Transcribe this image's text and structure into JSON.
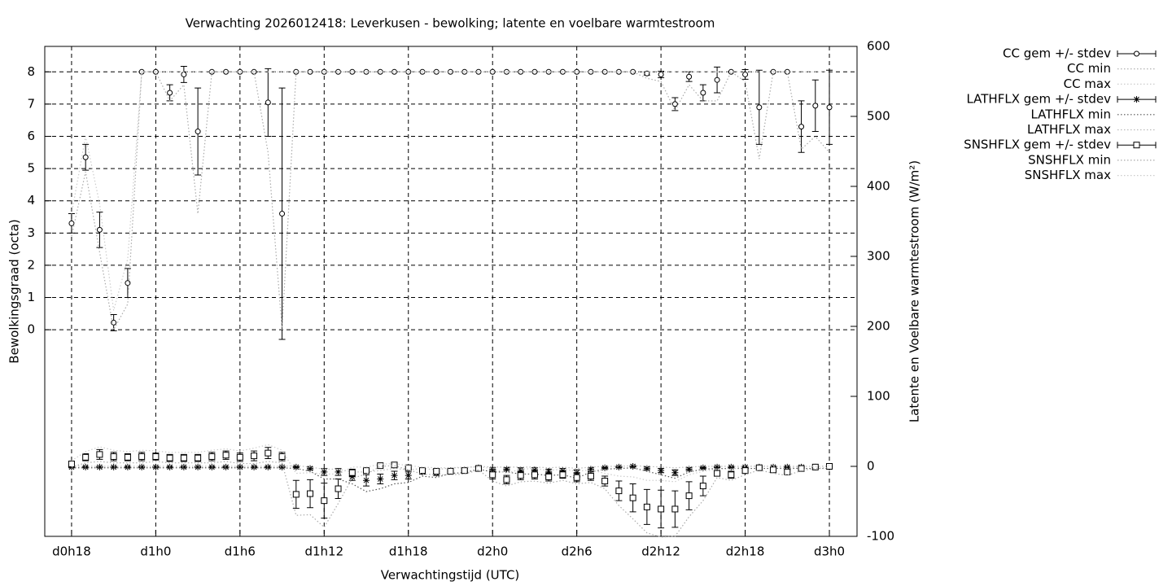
{
  "chart_data": {
    "type": "errorbar-line",
    "title": "Verwachting 2026012418: Leverkusen - bewolking; latente en voelbare warmtestroom",
    "x_label": "Verwachtingstijd (UTC)",
    "y_label": "Bewolkingsgraad (octa)",
    "y2_label": "Latente en Voelbare warmtestroom (W/m²)",
    "x": [
      18,
      19,
      20,
      21,
      22,
      23,
      24,
      25,
      26,
      27,
      28,
      29,
      30,
      31,
      32,
      33,
      34,
      35,
      36,
      37,
      38,
      39,
      40,
      41,
      42,
      43,
      44,
      45,
      46,
      47,
      48,
      49,
      50,
      51,
      52,
      53,
      54,
      55,
      56,
      57,
      58,
      59,
      60,
      61,
      62,
      63,
      64,
      65,
      66,
      67,
      68,
      69,
      70,
      71,
      72
    ],
    "xlim": [
      16.09,
      73.97
    ],
    "xticks": [
      {
        "value": 18,
        "label": "d0h18"
      },
      {
        "value": 24,
        "label": "d1h0"
      },
      {
        "value": 30,
        "label": "d1h6"
      },
      {
        "value": 36,
        "label": "d1h12"
      },
      {
        "value": 42,
        "label": "d1h18"
      },
      {
        "value": 48,
        "label": "d2h0"
      },
      {
        "value": 54,
        "label": "d2h6"
      },
      {
        "value": 60,
        "label": "d2h12"
      },
      {
        "value": 66,
        "label": "d2h18"
      },
      {
        "value": 72,
        "label": "d3h0"
      }
    ],
    "ylim": [
      -6.41,
      8.79
    ],
    "yticks": [
      0,
      1,
      2,
      3,
      4,
      5,
      6,
      7,
      8
    ],
    "y2lim": [
      -100,
      600
    ],
    "y2ticks": [
      -100,
      0,
      100,
      200,
      300,
      400,
      500,
      600
    ],
    "grid": true,
    "legend_position": "right",
    "series": [
      {
        "name": "CC gem +/- stdev",
        "style": "errorbars",
        "marker": "circle",
        "color": "#000000",
        "axis": "y",
        "values": [
          3.3,
          5.35,
          3.1,
          0.22,
          1.45,
          8,
          8,
          7.35,
          7.92,
          6.15,
          8,
          8,
          8,
          8,
          7.05,
          3.6,
          8,
          8,
          8,
          8,
          8,
          8,
          8,
          8,
          8,
          8,
          8,
          8,
          8,
          8,
          8,
          8,
          8,
          8,
          8,
          8,
          8,
          8,
          8,
          8,
          8,
          7.95,
          7.92,
          7.0,
          7.85,
          7.35,
          7.75,
          8,
          7.92,
          6.9,
          8,
          8,
          6.3,
          6.95,
          6.9
        ],
        "errors": [
          0.3,
          0.4,
          0.55,
          0.25,
          0.45,
          0,
          0,
          0.25,
          0.25,
          1.35,
          0,
          0,
          0,
          0,
          1.05,
          3.9,
          0,
          0,
          0,
          0,
          0,
          0,
          0,
          0,
          0,
          0,
          0,
          0,
          0,
          0,
          0,
          0,
          0,
          0,
          0,
          0,
          0,
          0,
          0,
          0,
          0,
          0.05,
          0.1,
          0.2,
          0.15,
          0.25,
          0.4,
          0,
          0.15,
          1.15,
          0,
          0,
          0.8,
          0.8,
          1.15
        ]
      },
      {
        "name": "CC min",
        "style": "dotted",
        "color": "#aaaaaa",
        "axis": "y",
        "values": [
          2.9,
          4.9,
          2.4,
          0,
          0.8,
          8,
          8,
          7.1,
          7.6,
          3.6,
          8,
          8,
          8,
          8,
          5.5,
          0,
          8,
          8,
          8,
          8,
          8,
          8,
          8,
          8,
          8,
          8,
          8,
          8,
          8,
          8,
          8,
          8,
          8,
          8,
          8,
          8,
          8,
          8,
          8,
          8,
          8,
          7.8,
          7.7,
          6.8,
          7.6,
          7.1,
          7.1,
          8,
          7.7,
          5.3,
          8,
          8,
          5.6,
          6,
          5.5
        ]
      },
      {
        "name": "CC max",
        "style": "dotted",
        "color": "#cccccc",
        "axis": "y",
        "values": [
          3.6,
          6.0,
          3.9,
          0.6,
          2.2,
          8,
          8,
          8,
          8,
          8,
          8,
          8,
          8,
          8,
          8,
          8,
          8,
          8,
          8,
          8,
          8,
          8,
          8,
          8,
          8,
          8,
          8,
          8,
          8,
          8,
          8,
          8,
          8,
          8,
          8,
          8,
          8,
          8,
          8,
          8,
          8,
          8,
          8,
          8,
          8,
          8,
          8,
          8,
          8,
          8,
          8,
          8,
          8,
          8,
          8
        ]
      },
      {
        "name": "LATHFLX gem +/- stdev",
        "style": "errorbars",
        "marker": "star",
        "color": "#000000",
        "axis": "y2",
        "values": [
          -1,
          -1,
          -1,
          -1,
          -1,
          -1,
          -1,
          -1,
          -1,
          -1,
          -1,
          -1,
          -1,
          -1,
          -1,
          -1,
          -1,
          -3,
          -8,
          -8,
          -15,
          -20,
          -18,
          -13,
          -13,
          -8,
          -10,
          -6,
          -5,
          -2,
          -4,
          -4,
          -5,
          -5,
          -7,
          -6,
          -9,
          -4,
          -2,
          -1,
          0,
          -3,
          -6,
          -9,
          -4,
          -2,
          -1,
          -1,
          -1,
          -1,
          -1,
          -1,
          -1,
          -1,
          -1
        ],
        "errors": [
          1,
          1,
          1,
          1,
          1,
          1,
          1,
          1,
          1,
          1,
          1,
          1,
          1,
          1,
          1,
          1,
          1,
          2,
          5,
          5,
          5,
          8,
          7,
          6,
          5,
          3,
          3,
          2,
          2,
          1,
          2,
          2,
          3,
          3,
          3,
          3,
          4,
          2,
          1,
          1,
          1,
          2,
          3,
          4,
          2,
          1,
          1,
          1,
          1,
          1,
          1,
          1,
          1,
          1,
          1
        ]
      },
      {
        "name": "LATHFLX min",
        "style": "dotted",
        "color": "#555555",
        "axis": "y2",
        "values": [
          -2,
          -2,
          -2,
          -2,
          -2,
          -2,
          -2,
          -2,
          -2,
          -2,
          -2,
          -2,
          -2,
          -2,
          -2,
          -2,
          -3,
          -7,
          -18,
          -18,
          -25,
          -36,
          -32,
          -25,
          -23,
          -14,
          -16,
          -10,
          -9,
          -4,
          -8,
          -8,
          -11,
          -11,
          -13,
          -12,
          -17,
          -8,
          -4,
          -3,
          -2,
          -7,
          -12,
          -17,
          -8,
          -4,
          -3,
          -3,
          -3,
          -3,
          -3,
          -3,
          -3,
          -3,
          -3
        ]
      },
      {
        "name": "LATHFLX max",
        "style": "dotted",
        "color": "#bbbbbb",
        "axis": "y2",
        "values": [
          0,
          0,
          0,
          0,
          0,
          0,
          0,
          0,
          0,
          0,
          0,
          0,
          0,
          0,
          0,
          0,
          1,
          -1,
          -4,
          -4,
          -8,
          -8,
          -6,
          -3,
          -5,
          -3,
          -5,
          -2,
          -2,
          0,
          -1,
          -1,
          -1,
          -1,
          -2,
          -1,
          -3,
          -1,
          0,
          0,
          1,
          0,
          -1,
          -2,
          -1,
          0,
          0,
          0,
          0,
          0,
          0,
          0,
          0,
          0,
          0
        ]
      },
      {
        "name": "SNSHFLX gem +/- stdev",
        "style": "errorbars",
        "marker": "square",
        "color": "#000000",
        "axis": "y2",
        "values": [
          3.5,
          13,
          17,
          14,
          13,
          14,
          14,
          12,
          12,
          12,
          14,
          16,
          13,
          15,
          19,
          14,
          -40,
          -39,
          -49,
          -32,
          -9,
          -6,
          1,
          2,
          -2,
          -6,
          -7,
          -7,
          -6,
          -3,
          -12,
          -19,
          -13,
          -12,
          -15,
          -12,
          -16,
          -14,
          -21,
          -35,
          -45,
          -58,
          -61,
          -61,
          -42,
          -28,
          -10,
          -12,
          -6,
          -2,
          -5,
          -8,
          -3,
          -1,
          0
        ],
        "errors": [
          3,
          5,
          7,
          6,
          5,
          6,
          5,
          5,
          5,
          5,
          6,
          6,
          6,
          7,
          8,
          6,
          20,
          20,
          25,
          14,
          5,
          3,
          1,
          1,
          2,
          3,
          3,
          3,
          3,
          1,
          6,
          6,
          6,
          6,
          6,
          5,
          6,
          6,
          7,
          14,
          20,
          25,
          27,
          26,
          20,
          14,
          4,
          5,
          4,
          2,
          3,
          3,
          2,
          1,
          1
        ]
      },
      {
        "name": "SNSHFLX min",
        "style": "dotted",
        "color": "#aaaaaa",
        "axis": "y2",
        "values": [
          -1,
          5,
          7,
          5,
          5,
          5,
          7,
          5,
          5,
          5,
          5,
          7,
          4,
          4,
          7,
          5,
          -70,
          -69,
          -87,
          -53,
          -17,
          -11,
          0,
          1,
          -5,
          -11,
          -12,
          -12,
          -11,
          -5,
          -21,
          -28,
          -22,
          -21,
          -24,
          -20,
          -25,
          -23,
          -32,
          -56,
          -75,
          -95,
          -101,
          -100,
          -72,
          -49,
          -16,
          -20,
          -12,
          -5,
          -10,
          -13,
          -6,
          -3,
          -2
        ]
      },
      {
        "name": "SNSHFLX max",
        "style": "dotted",
        "color": "#cccccc",
        "axis": "y2",
        "values": [
          8,
          21,
          28,
          23,
          21,
          23,
          22,
          20,
          20,
          20,
          23,
          25,
          22,
          26,
          31,
          23,
          -10,
          -9,
          -11,
          -11,
          -1,
          -1,
          3,
          4,
          1,
          -1,
          -2,
          -2,
          -1,
          -1,
          -3,
          -10,
          -4,
          -3,
          -6,
          -4,
          -7,
          -5,
          -10,
          -14,
          -15,
          -20,
          -20,
          -22,
          -12,
          -7,
          -4,
          -4,
          0,
          1,
          0,
          -3,
          0,
          0,
          1
        ]
      }
    ]
  }
}
